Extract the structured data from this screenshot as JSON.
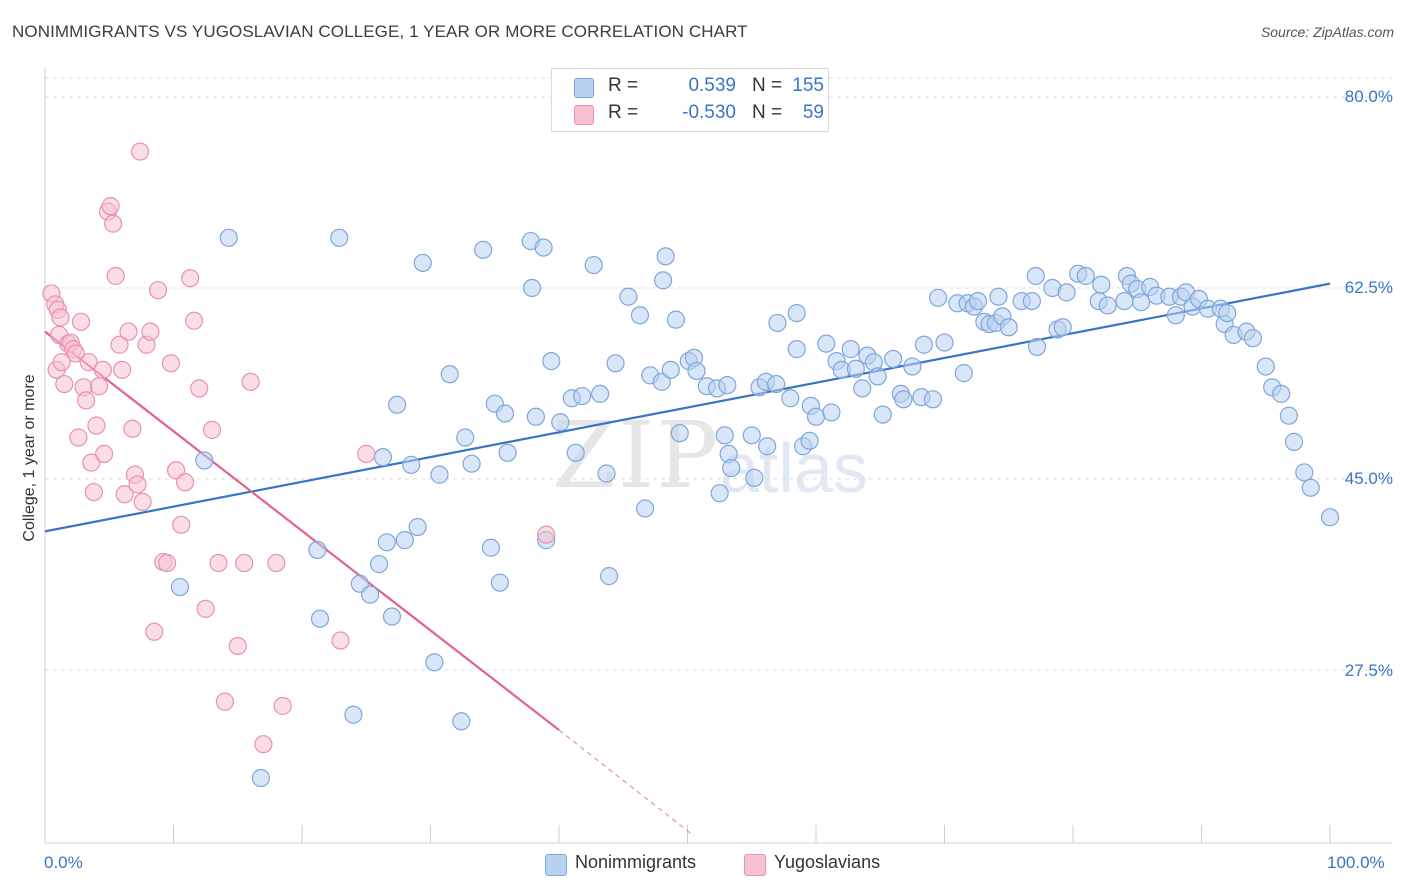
{
  "title": "NONIMMIGRANTS VS YUGOSLAVIAN COLLEGE, 1 YEAR OR MORE CORRELATION CHART",
  "source": "Source: ZipAtlas.com",
  "watermark": {
    "zip": "ZIP",
    "atlas": "atlas"
  },
  "colors": {
    "blue": "#3a74c7",
    "blue_fill": "#b8d1f1",
    "pink": "#e0638e",
    "pink_fill": "#f6c1d2",
    "grid": "#dcdcdc"
  },
  "legend": {
    "series1": {
      "r_label": "R =",
      "r_value": "0.539",
      "n_label": "N =",
      "n_value": "155"
    },
    "series2": {
      "r_label": "R =",
      "r_value": "-0.530",
      "n_label": "N =",
      "n_value": "59"
    }
  },
  "chart_data": {
    "type": "scatter",
    "title": "NONIMMIGRANTS VS YUGOSLAVIAN COLLEGE, 1 YEAR OR MORE CORRELATION CHART",
    "xlabel": "",
    "ylabel": "College, 1 year or more",
    "xlim": [
      0,
      100
    ],
    "ylim": [
      10,
      83
    ],
    "x_ticks": [
      "0.0%",
      "100.0%"
    ],
    "y_ticks": [
      {
        "value": 80.0,
        "label": "80.0%"
      },
      {
        "value": 62.5,
        "label": "62.5%"
      },
      {
        "value": 45.0,
        "label": "45.0%"
      },
      {
        "value": 27.5,
        "label": "27.5%"
      }
    ],
    "series": [
      {
        "name": "Nonimmigrants",
        "color": "#3a74c7",
        "trend": {
          "x": [
            0,
            100
          ],
          "y": [
            40.2,
            62.9
          ]
        },
        "points": [
          [
            12.4,
            46.7
          ],
          [
            10.5,
            35.1
          ],
          [
            14.3,
            67.1
          ],
          [
            16.8,
            17.6
          ],
          [
            21.2,
            38.5
          ],
          [
            21.4,
            32.2
          ],
          [
            22.9,
            67.1
          ],
          [
            24.0,
            23.4
          ],
          [
            24.5,
            35.4
          ],
          [
            25.3,
            34.4
          ],
          [
            26.0,
            37.2
          ],
          [
            26.3,
            47.0
          ],
          [
            26.6,
            39.2
          ],
          [
            27.0,
            32.4
          ],
          [
            27.4,
            51.8
          ],
          [
            28.0,
            39.4
          ],
          [
            28.5,
            46.3
          ],
          [
            29.0,
            40.6
          ],
          [
            29.4,
            64.8
          ],
          [
            30.3,
            28.2
          ],
          [
            30.7,
            45.4
          ],
          [
            31.5,
            54.6
          ],
          [
            32.4,
            22.8
          ],
          [
            32.7,
            48.8
          ],
          [
            33.2,
            46.4
          ],
          [
            34.1,
            66.0
          ],
          [
            34.7,
            38.7
          ],
          [
            35.0,
            51.9
          ],
          [
            35.4,
            35.5
          ],
          [
            35.8,
            51.0
          ],
          [
            36.0,
            47.4
          ],
          [
            37.8,
            66.8
          ],
          [
            37.9,
            62.5
          ],
          [
            38.2,
            50.7
          ],
          [
            38.8,
            66.2
          ],
          [
            39.0,
            39.4
          ],
          [
            39.4,
            55.8
          ],
          [
            40.1,
            50.2
          ],
          [
            41.0,
            52.4
          ],
          [
            41.3,
            47.4
          ],
          [
            41.8,
            52.6
          ],
          [
            42.7,
            64.6
          ],
          [
            43.2,
            52.8
          ],
          [
            43.7,
            45.5
          ],
          [
            43.9,
            36.1
          ],
          [
            44.4,
            55.6
          ],
          [
            45.4,
            61.7
          ],
          [
            46.3,
            60.0
          ],
          [
            46.7,
            42.3
          ],
          [
            47.1,
            54.5
          ],
          [
            48.0,
            53.9
          ],
          [
            48.1,
            63.2
          ],
          [
            48.3,
            65.4
          ],
          [
            48.7,
            55.0
          ],
          [
            49.1,
            59.6
          ],
          [
            49.4,
            49.2
          ],
          [
            50.1,
            55.8
          ],
          [
            50.5,
            56.1
          ],
          [
            50.7,
            54.9
          ],
          [
            51.5,
            53.5
          ],
          [
            52.3,
            53.3
          ],
          [
            52.5,
            43.7
          ],
          [
            52.9,
            49.0
          ],
          [
            53.1,
            53.6
          ],
          [
            53.2,
            47.3
          ],
          [
            53.4,
            46.0
          ],
          [
            55.0,
            49.0
          ],
          [
            55.2,
            45.1
          ],
          [
            55.6,
            53.4
          ],
          [
            56.1,
            53.9
          ],
          [
            56.2,
            48.0
          ],
          [
            56.9,
            53.7
          ],
          [
            57.0,
            59.3
          ],
          [
            58.0,
            52.4
          ],
          [
            58.5,
            60.2
          ],
          [
            58.5,
            56.9
          ],
          [
            59.0,
            48.0
          ],
          [
            59.5,
            48.5
          ],
          [
            59.6,
            51.7
          ],
          [
            60.0,
            50.7
          ],
          [
            60.8,
            57.4
          ],
          [
            61.2,
            51.1
          ],
          [
            61.6,
            55.8
          ],
          [
            62.0,
            55.0
          ],
          [
            62.7,
            56.9
          ],
          [
            63.1,
            55.1
          ],
          [
            63.6,
            53.3
          ],
          [
            64.0,
            56.3
          ],
          [
            64.5,
            55.7
          ],
          [
            64.8,
            54.4
          ],
          [
            65.2,
            50.9
          ],
          [
            66.0,
            56.0
          ],
          [
            66.6,
            52.8
          ],
          [
            66.8,
            52.3
          ],
          [
            67.5,
            55.3
          ],
          [
            68.2,
            52.5
          ],
          [
            68.4,
            57.3
          ],
          [
            69.1,
            52.3
          ],
          [
            69.5,
            61.6
          ],
          [
            70.0,
            57.5
          ],
          [
            71.0,
            61.1
          ],
          [
            71.5,
            54.7
          ],
          [
            71.8,
            61.1
          ],
          [
            72.3,
            60.8
          ],
          [
            72.6,
            61.3
          ],
          [
            73.1,
            59.4
          ],
          [
            73.5,
            59.2
          ],
          [
            74.0,
            59.3
          ],
          [
            74.2,
            61.7
          ],
          [
            74.5,
            59.9
          ],
          [
            75.0,
            58.9
          ],
          [
            76.0,
            61.3
          ],
          [
            76.8,
            61.3
          ],
          [
            77.1,
            63.6
          ],
          [
            77.2,
            57.1
          ],
          [
            78.4,
            62.5
          ],
          [
            78.8,
            58.7
          ],
          [
            79.2,
            58.9
          ],
          [
            79.5,
            62.1
          ],
          [
            80.4,
            63.8
          ],
          [
            81.0,
            63.6
          ],
          [
            82.0,
            61.3
          ],
          [
            82.2,
            62.8
          ],
          [
            82.7,
            60.9
          ],
          [
            84.0,
            61.3
          ],
          [
            84.2,
            63.6
          ],
          [
            84.5,
            62.9
          ],
          [
            85.0,
            62.4
          ],
          [
            85.3,
            61.2
          ],
          [
            86.0,
            62.6
          ],
          [
            86.5,
            61.8
          ],
          [
            87.5,
            61.7
          ],
          [
            88.0,
            60.0
          ],
          [
            88.4,
            61.7
          ],
          [
            88.8,
            62.1
          ],
          [
            89.3,
            60.8
          ],
          [
            89.8,
            61.5
          ],
          [
            90.5,
            60.6
          ],
          [
            91.5,
            60.6
          ],
          [
            91.8,
            59.2
          ],
          [
            92.0,
            60.2
          ],
          [
            92.5,
            58.2
          ],
          [
            93.5,
            58.5
          ],
          [
            94.0,
            57.9
          ],
          [
            95.0,
            55.3
          ],
          [
            95.5,
            53.4
          ],
          [
            96.2,
            52.8
          ],
          [
            96.8,
            50.8
          ],
          [
            97.2,
            48.4
          ],
          [
            98.0,
            45.6
          ],
          [
            98.5,
            44.2
          ],
          [
            100.0,
            41.5
          ]
        ]
      },
      {
        "name": "Yugoslavians",
        "color": "#e0638e",
        "trend": {
          "x": [
            0,
            40
          ],
          "y": [
            58.5,
            22.0
          ],
          "dashed_to": {
            "x": 50.5,
            "y": 12.3
          }
        },
        "points": [
          [
            0.5,
            62.0
          ],
          [
            0.8,
            61.0
          ],
          [
            1.0,
            60.5
          ],
          [
            1.2,
            59.8
          ],
          [
            1.1,
            58.2
          ],
          [
            0.9,
            55.0
          ],
          [
            1.3,
            55.7
          ],
          [
            1.5,
            53.7
          ],
          [
            1.8,
            57.4
          ],
          [
            2.0,
            57.5
          ],
          [
            2.2,
            56.9
          ],
          [
            2.4,
            56.5
          ],
          [
            2.6,
            48.8
          ],
          [
            2.8,
            59.4
          ],
          [
            3.0,
            53.4
          ],
          [
            3.2,
            52.2
          ],
          [
            3.4,
            55.7
          ],
          [
            3.6,
            46.5
          ],
          [
            3.8,
            43.8
          ],
          [
            4.0,
            49.9
          ],
          [
            4.2,
            53.5
          ],
          [
            4.5,
            55.0
          ],
          [
            4.6,
            47.3
          ],
          [
            4.9,
            69.5
          ],
          [
            5.1,
            70.0
          ],
          [
            5.3,
            68.4
          ],
          [
            5.5,
            63.6
          ],
          [
            5.8,
            57.3
          ],
          [
            6.0,
            55.0
          ],
          [
            6.2,
            43.6
          ],
          [
            6.5,
            58.5
          ],
          [
            6.8,
            49.6
          ],
          [
            7.0,
            45.4
          ],
          [
            7.2,
            44.5
          ],
          [
            7.4,
            75.0
          ],
          [
            7.6,
            42.9
          ],
          [
            7.9,
            57.3
          ],
          [
            8.2,
            58.5
          ],
          [
            8.5,
            31.0
          ],
          [
            8.8,
            62.3
          ],
          [
            9.2,
            37.4
          ],
          [
            9.5,
            37.3
          ],
          [
            9.8,
            55.6
          ],
          [
            10.2,
            45.8
          ],
          [
            10.6,
            40.8
          ],
          [
            10.9,
            44.7
          ],
          [
            11.3,
            63.4
          ],
          [
            11.6,
            59.5
          ],
          [
            12.0,
            53.3
          ],
          [
            12.5,
            33.1
          ],
          [
            13.0,
            49.5
          ],
          [
            13.5,
            37.3
          ],
          [
            14.0,
            24.6
          ],
          [
            15.0,
            29.7
          ],
          [
            15.5,
            37.3
          ],
          [
            16.0,
            53.9
          ],
          [
            17.0,
            20.7
          ],
          [
            18.0,
            37.3
          ],
          [
            18.5,
            24.2
          ],
          [
            23.0,
            30.2
          ],
          [
            25.0,
            47.3
          ],
          [
            39.0,
            39.9
          ]
        ]
      }
    ]
  },
  "bottom_legend": {
    "series1": "Nonimmigrants",
    "series2": "Yugoslavians"
  },
  "axis_labels": {
    "y": "College, 1 year or more",
    "x_min": "0.0%",
    "x_max": "100.0%"
  }
}
